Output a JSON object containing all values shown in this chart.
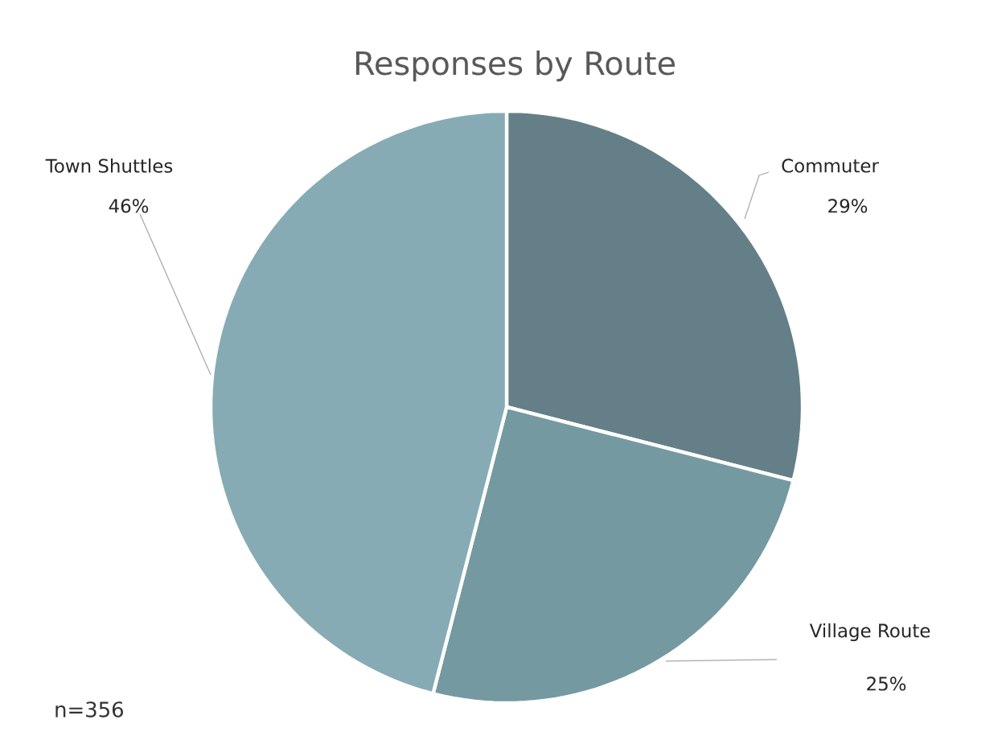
{
  "chart_data": {
    "type": "pie",
    "title": "Responses by Route",
    "categories": [
      "Commuter",
      "Village Route",
      "Town Shuttles"
    ],
    "values": [
      29,
      25,
      46
    ],
    "colors": [
      "#647f87",
      "#7599a0",
      "#86abb5"
    ],
    "data_labels": true,
    "value_labels": [
      "29%",
      "25%",
      "46%"
    ],
    "annotations": [
      "n=356"
    ]
  }
}
